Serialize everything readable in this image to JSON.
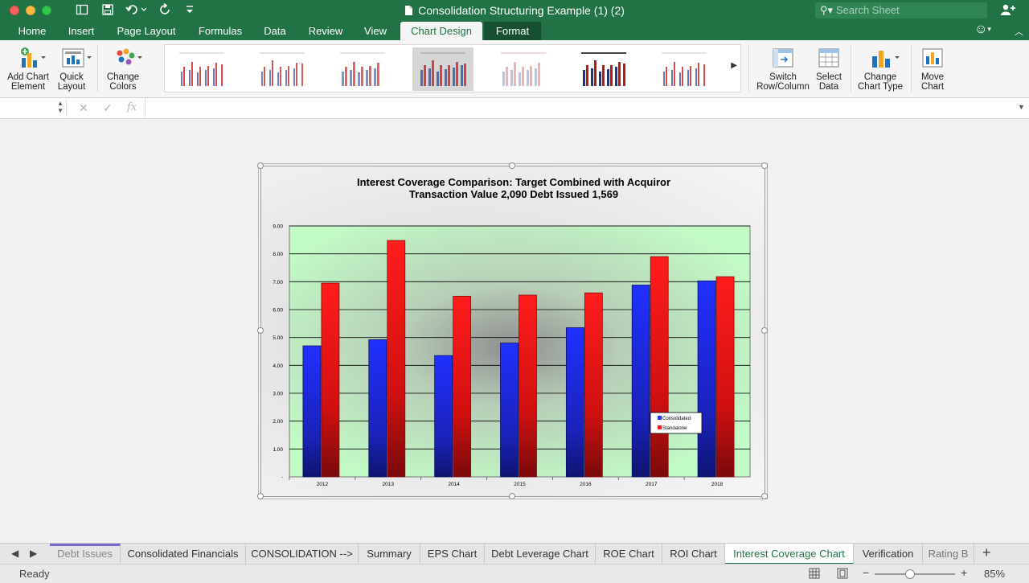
{
  "window": {
    "title": "Consolidation Structuring Example (1) (2)",
    "search_placeholder": "Search Sheet"
  },
  "ribbon_tabs": [
    "Home",
    "Insert",
    "Page Layout",
    "Formulas",
    "Data",
    "Review",
    "View",
    "Chart Design",
    "Format"
  ],
  "active_tab": "Chart Design",
  "ribbon": {
    "add_chart_element": [
      "Add Chart",
      "Element"
    ],
    "quick_layout": [
      "Quick",
      "Layout"
    ],
    "change_colors": [
      "Change",
      "Colors"
    ],
    "switch_row_column": [
      "Switch",
      "Row/Column"
    ],
    "select_data": [
      "Select",
      "Data"
    ],
    "change_chart_type": [
      "Change",
      "Chart Type"
    ],
    "move_chart": [
      "Move",
      "Chart"
    ]
  },
  "formula_bar": {
    "fx": "fx",
    "cancel": "✕",
    "confirm": "✓"
  },
  "chart_data": {
    "type": "bar",
    "title_line1": "Interest Coverage Comparison: Target Combined with Acquiror",
    "title_line2": "Transaction Value 2,090 Debt Issued 1,569",
    "categories": [
      "2012",
      "2013",
      "2014",
      "2015",
      "2016",
      "2017",
      "2018"
    ],
    "series": [
      {
        "name": "Consolidated",
        "color": "#2233ee",
        "values": [
          4.7,
          4.92,
          4.35,
          4.8,
          5.35,
          6.88,
          7.03
        ]
      },
      {
        "name": "Standalone",
        "color": "#ee1c1c",
        "values": [
          6.95,
          8.48,
          6.48,
          6.52,
          6.6,
          7.9,
          7.18
        ]
      }
    ],
    "ylim": [
      0,
      9
    ],
    "yticks": [
      "",
      "1.00",
      "2.00",
      "3.00",
      "4.00",
      "5.00",
      "6.00",
      "7.00",
      "8.00",
      "9.00"
    ],
    "grid": true,
    "legend_position": "bottom-right"
  },
  "sheet_tabs": [
    "Debt Issues",
    "Consolidated Financials",
    "CONSOLIDATION -->",
    "Summary",
    "EPS Chart",
    "Debt Leverage Chart",
    "ROE Chart",
    "ROI Chart",
    "Interest Coverage Chart",
    "Verification",
    "Rating B"
  ],
  "active_sheet": "Interest Coverage Chart",
  "status": {
    "text": "Ready",
    "zoom": "85%"
  }
}
